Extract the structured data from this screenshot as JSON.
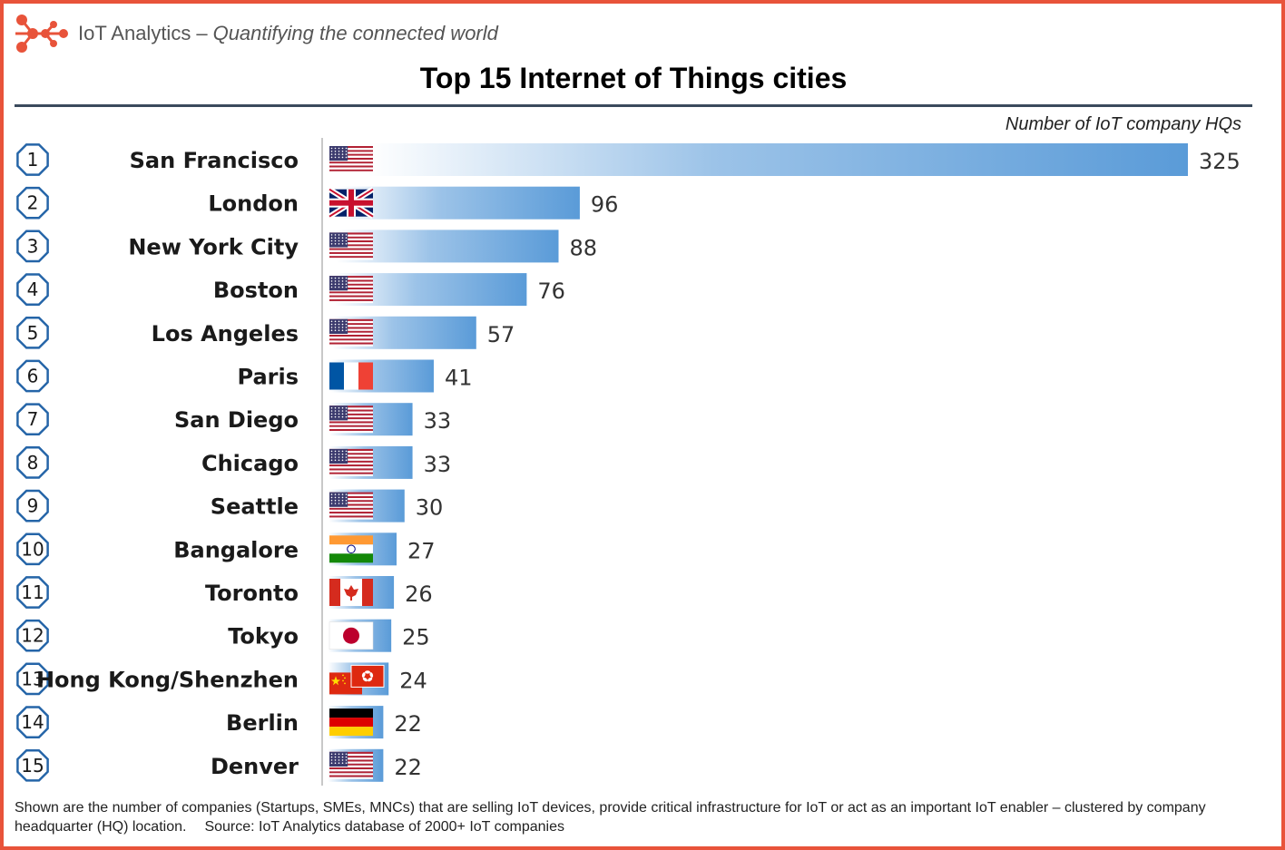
{
  "brand": {
    "name": "IoT Analytics",
    "separator": "–",
    "tagline": "Quantifying the connected world",
    "accent_color": "#e8533a",
    "logo_icon": "network-dots-icon"
  },
  "footnote": {
    "text": "Shown are the number of companies (Startups, SMEs, MNCs) that are selling IoT devices, provide critical infrastructure for IoT or act as an important IoT enabler – clustered by company headquarter (HQ) location.",
    "source": "Source: IoT Analytics database of 2000+ IoT companies"
  },
  "chart_data": {
    "type": "bar",
    "orientation": "horizontal",
    "title": "Top 15 Internet of Things cities",
    "value_label": "Number of IoT company HQs",
    "bar_color": "#5a9bd8",
    "xlim": [
      0,
      325
    ],
    "categories": [
      "San Francisco",
      "London",
      "New York City",
      "Boston",
      "Los Angeles",
      "Paris",
      "San Diego",
      "Chicago",
      "Seattle",
      "Bangalore",
      "Toronto",
      "Tokyo",
      "Hong Kong/Shenzhen",
      "Berlin",
      "Denver"
    ],
    "ranks": [
      "1",
      "2",
      "3",
      "4",
      "5",
      "6",
      "7",
      "8",
      "9",
      "10",
      "11",
      "12",
      "13",
      "14",
      "15"
    ],
    "values": [
      325,
      96,
      88,
      76,
      57,
      41,
      33,
      33,
      30,
      27,
      26,
      25,
      24,
      22,
      22
    ],
    "flags": [
      "us",
      "uk",
      "us",
      "us",
      "us",
      "fr",
      "us",
      "us",
      "us",
      "in",
      "ca",
      "jp",
      "cn-hk",
      "de",
      "us"
    ]
  }
}
